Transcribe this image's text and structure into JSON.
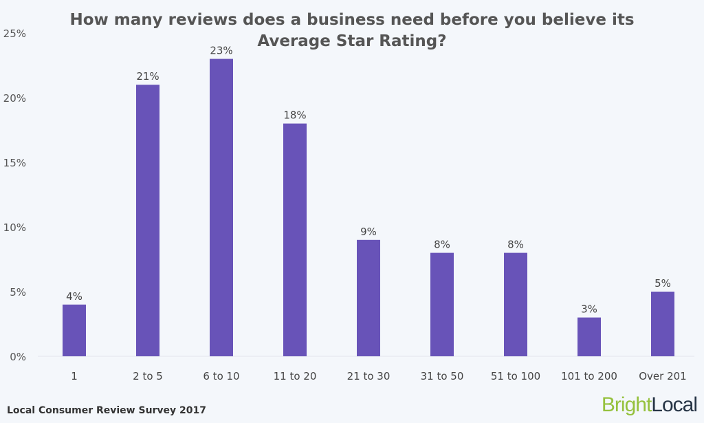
{
  "chart_data": {
    "type": "bar",
    "title_line1": "How many reviews does a business need before you believe its",
    "title_line2": "Average Star Rating?",
    "categories": [
      "1",
      "2 to 5",
      "6 to 10",
      "11 to 20",
      "21 to 30",
      "31 to 50",
      "51 to 100",
      "101 to 200",
      "Over 201"
    ],
    "values": [
      4,
      21,
      23,
      18,
      9,
      8,
      8,
      3,
      5
    ],
    "data_labels": [
      "4%",
      "21%",
      "23%",
      "18%",
      "9%",
      "8%",
      "8%",
      "3%",
      "5%"
    ],
    "yticks": [
      0,
      5,
      10,
      15,
      20,
      25
    ],
    "ytick_labels": [
      "0%",
      "5%",
      "10%",
      "15%",
      "20%",
      "25%"
    ],
    "ylim": [
      0,
      25
    ],
    "grid": false,
    "bar_color": "#6853b8",
    "xlabel": "",
    "ylabel": ""
  },
  "footer": {
    "source": "Local Consumer Review Survey 2017"
  },
  "logo": {
    "part1": "Bright",
    "part2": "Local",
    "color1": "#95c13d",
    "color2": "#263445"
  }
}
